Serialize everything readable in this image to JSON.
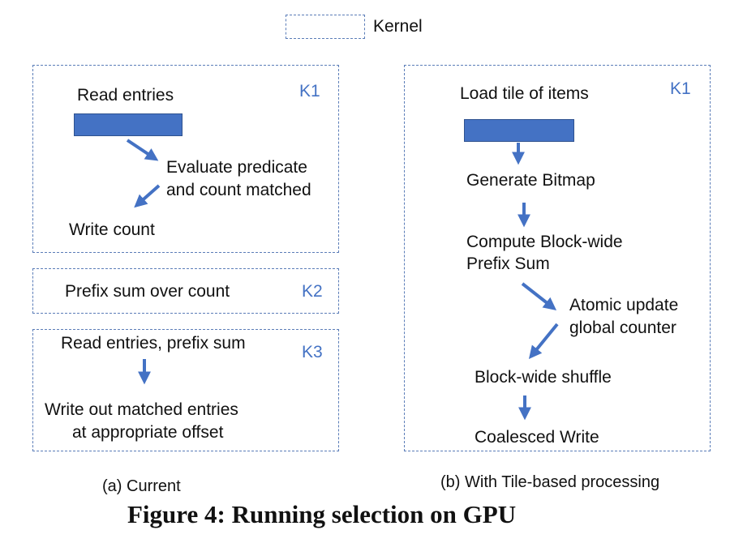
{
  "legend": {
    "label": "Kernel"
  },
  "left": {
    "k1": {
      "tag": "K1",
      "read": "Read entries",
      "eval_line1": "Evaluate predicate",
      "eval_line2": "and count matched",
      "write": "Write count"
    },
    "k2": {
      "tag": "K2",
      "text": "Prefix sum over count"
    },
    "k3": {
      "tag": "K3",
      "read": "Read entries, prefix sum",
      "write_line1": "Write out matched entries",
      "write_line2": "at appropriate offset"
    },
    "caption": "(a) Current"
  },
  "right": {
    "tag": "K1",
    "load": "Load tile of items",
    "bitmap": "Generate Bitmap",
    "prefix_line1": "Compute Block-wide",
    "prefix_line2": "Prefix Sum",
    "atomic_line1": "Atomic update",
    "atomic_line2": "global counter",
    "shuffle": "Block-wide shuffle",
    "write": "Coalesced Write",
    "caption": "(b) With Tile-based processing"
  },
  "figure_title": "Figure 4: Running selection on GPU",
  "colors": {
    "accent": "#4472c4",
    "dash": "#5b7db8"
  }
}
